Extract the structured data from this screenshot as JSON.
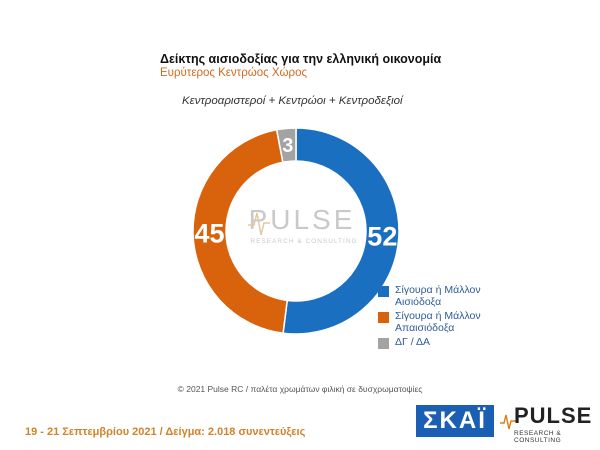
{
  "header": {
    "title": "Δείκτης αισιοδοξίας για την ελληνική οικονομία",
    "subtitle": "Ευρύτερος Κεντρώος Χώρος",
    "group": "Κεντροαριστεροί + Κεντρώοι + Κεντροδεξιοί"
  },
  "chart_data": {
    "type": "pie",
    "title": "Δείκτης αισιοδοξίας για την ελληνική οικονομία",
    "subtitle": "Ευρύτερος Κεντρώος Χώρος",
    "legend_position": "bottom-right",
    "series": [
      {
        "name": "Σίγουρα ή Μάλλον Αισιόδοξα",
        "value": 52,
        "label": "52",
        "color": "#1b6fc0"
      },
      {
        "name": "Σίγουρα ή Μάλλον Απαισιόδοξα",
        "value": 45,
        "label": "45",
        "color": "#d9620c"
      },
      {
        "name": "ΔΓ / ΔΑ",
        "value": 3,
        "label": "3",
        "color": "#a3a3a3"
      }
    ]
  },
  "watermark": {
    "brand": "PULSE",
    "tagline": "RESEARCH & CONSULTING"
  },
  "copyright": "© 2021 Pulse RC  /  παλέτα χρωμάτων φιλική σε δυσχρωματοψίες",
  "footer": "19 - 21 Σεπτεμβρίου 2021  /  Δείγμα:  2.018 συνεντεύξεις",
  "logos": {
    "skai": "ΣΚΑΪ",
    "pulse": "PULSE",
    "pulse_tagline": "RESEARCH & CONSULTING"
  }
}
